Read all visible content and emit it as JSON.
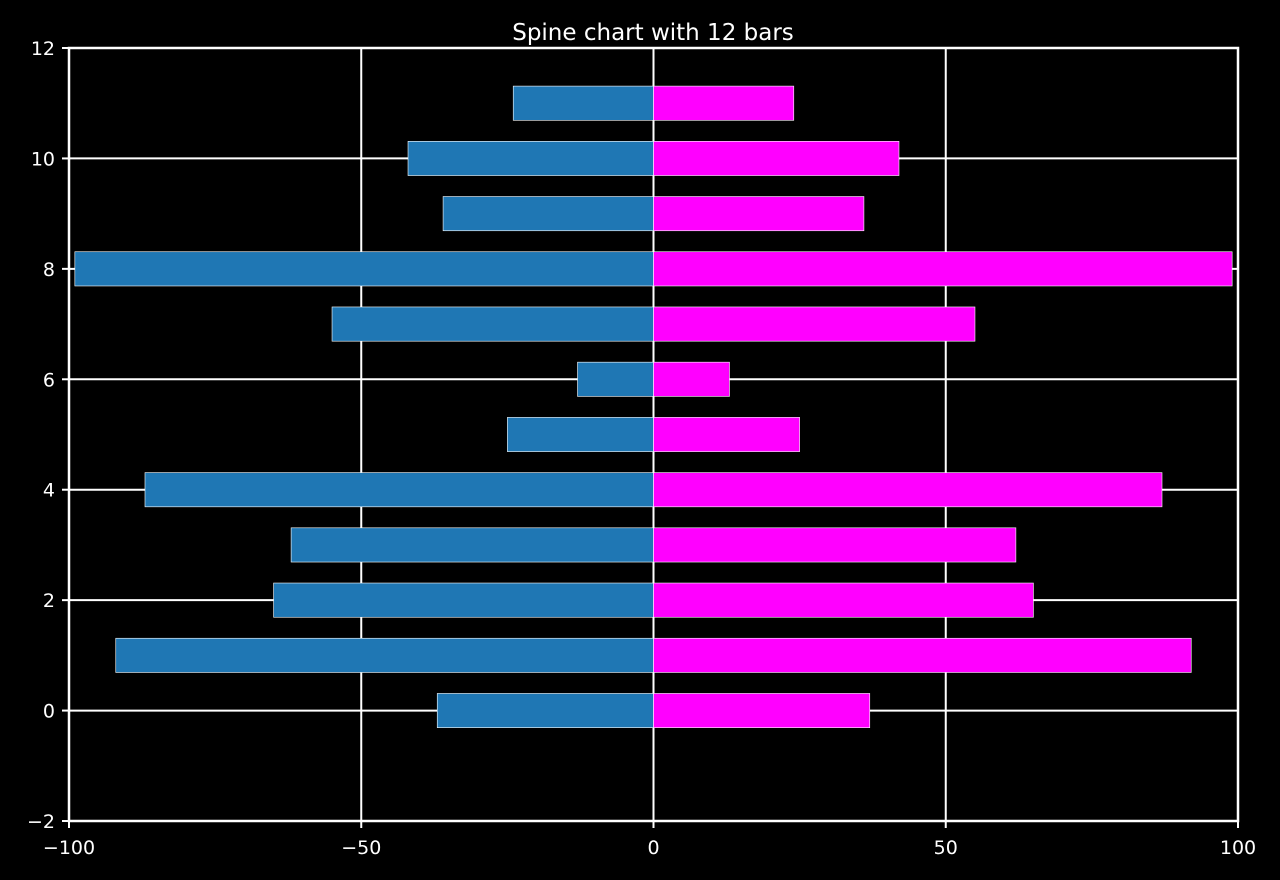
{
  "chart_data": {
    "type": "bar",
    "orientation": "horizontal",
    "title": "Spine chart with 12 bars",
    "xlabel": "",
    "ylabel": "",
    "xlim": [
      -100,
      100
    ],
    "ylim": [
      -2,
      12
    ],
    "grid": true,
    "y": [
      0,
      1,
      2,
      3,
      4,
      5,
      6,
      7,
      8,
      9,
      10,
      11
    ],
    "series": [
      {
        "values": [
          -37,
          -92,
          -65,
          -62,
          -87,
          -25,
          -13,
          -55,
          -99,
          -36,
          -42,
          -24
        ]
      },
      {
        "values": [
          37,
          92,
          65,
          62,
          87,
          25,
          13,
          55,
          99,
          36,
          42,
          24
        ]
      }
    ],
    "x_ticks": [
      -100,
      -50,
      0,
      50,
      100
    ],
    "x_tick_labels": [
      "−100",
      "−50",
      "0",
      "50",
      "100"
    ],
    "y_ticks": [
      -2,
      0,
      2,
      4,
      6,
      8,
      10,
      12
    ],
    "y_tick_labels": [
      "−2",
      "0",
      "2",
      "4",
      "6",
      "8",
      "10",
      "12"
    ],
    "colors": {
      "background": "#000000",
      "left_bars": "#1f77b4",
      "right_bars": "#ff00ff",
      "grid": "#ffffff",
      "axes": "#ffffff",
      "text": "#ffffff",
      "bar_edge": "#ffffff"
    }
  }
}
